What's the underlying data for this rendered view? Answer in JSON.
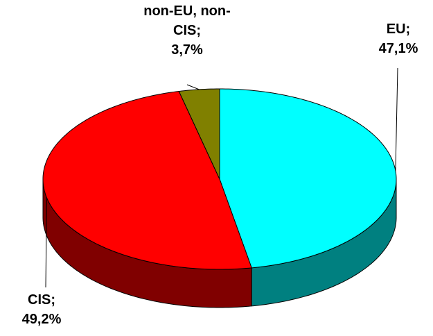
{
  "chart_data": {
    "type": "pie",
    "categories": [
      "EU;",
      "CIS;",
      "non-EU, non-CIS;"
    ],
    "values": [
      47.1,
      49.2,
      3.7
    ],
    "value_labels": [
      "47,1%",
      "49,2%",
      "3,7%"
    ],
    "colors": [
      "#00ffff",
      "#ff0000",
      "#808000"
    ],
    "side_colors": [
      "#008080",
      "#800000",
      "#404000"
    ]
  }
}
